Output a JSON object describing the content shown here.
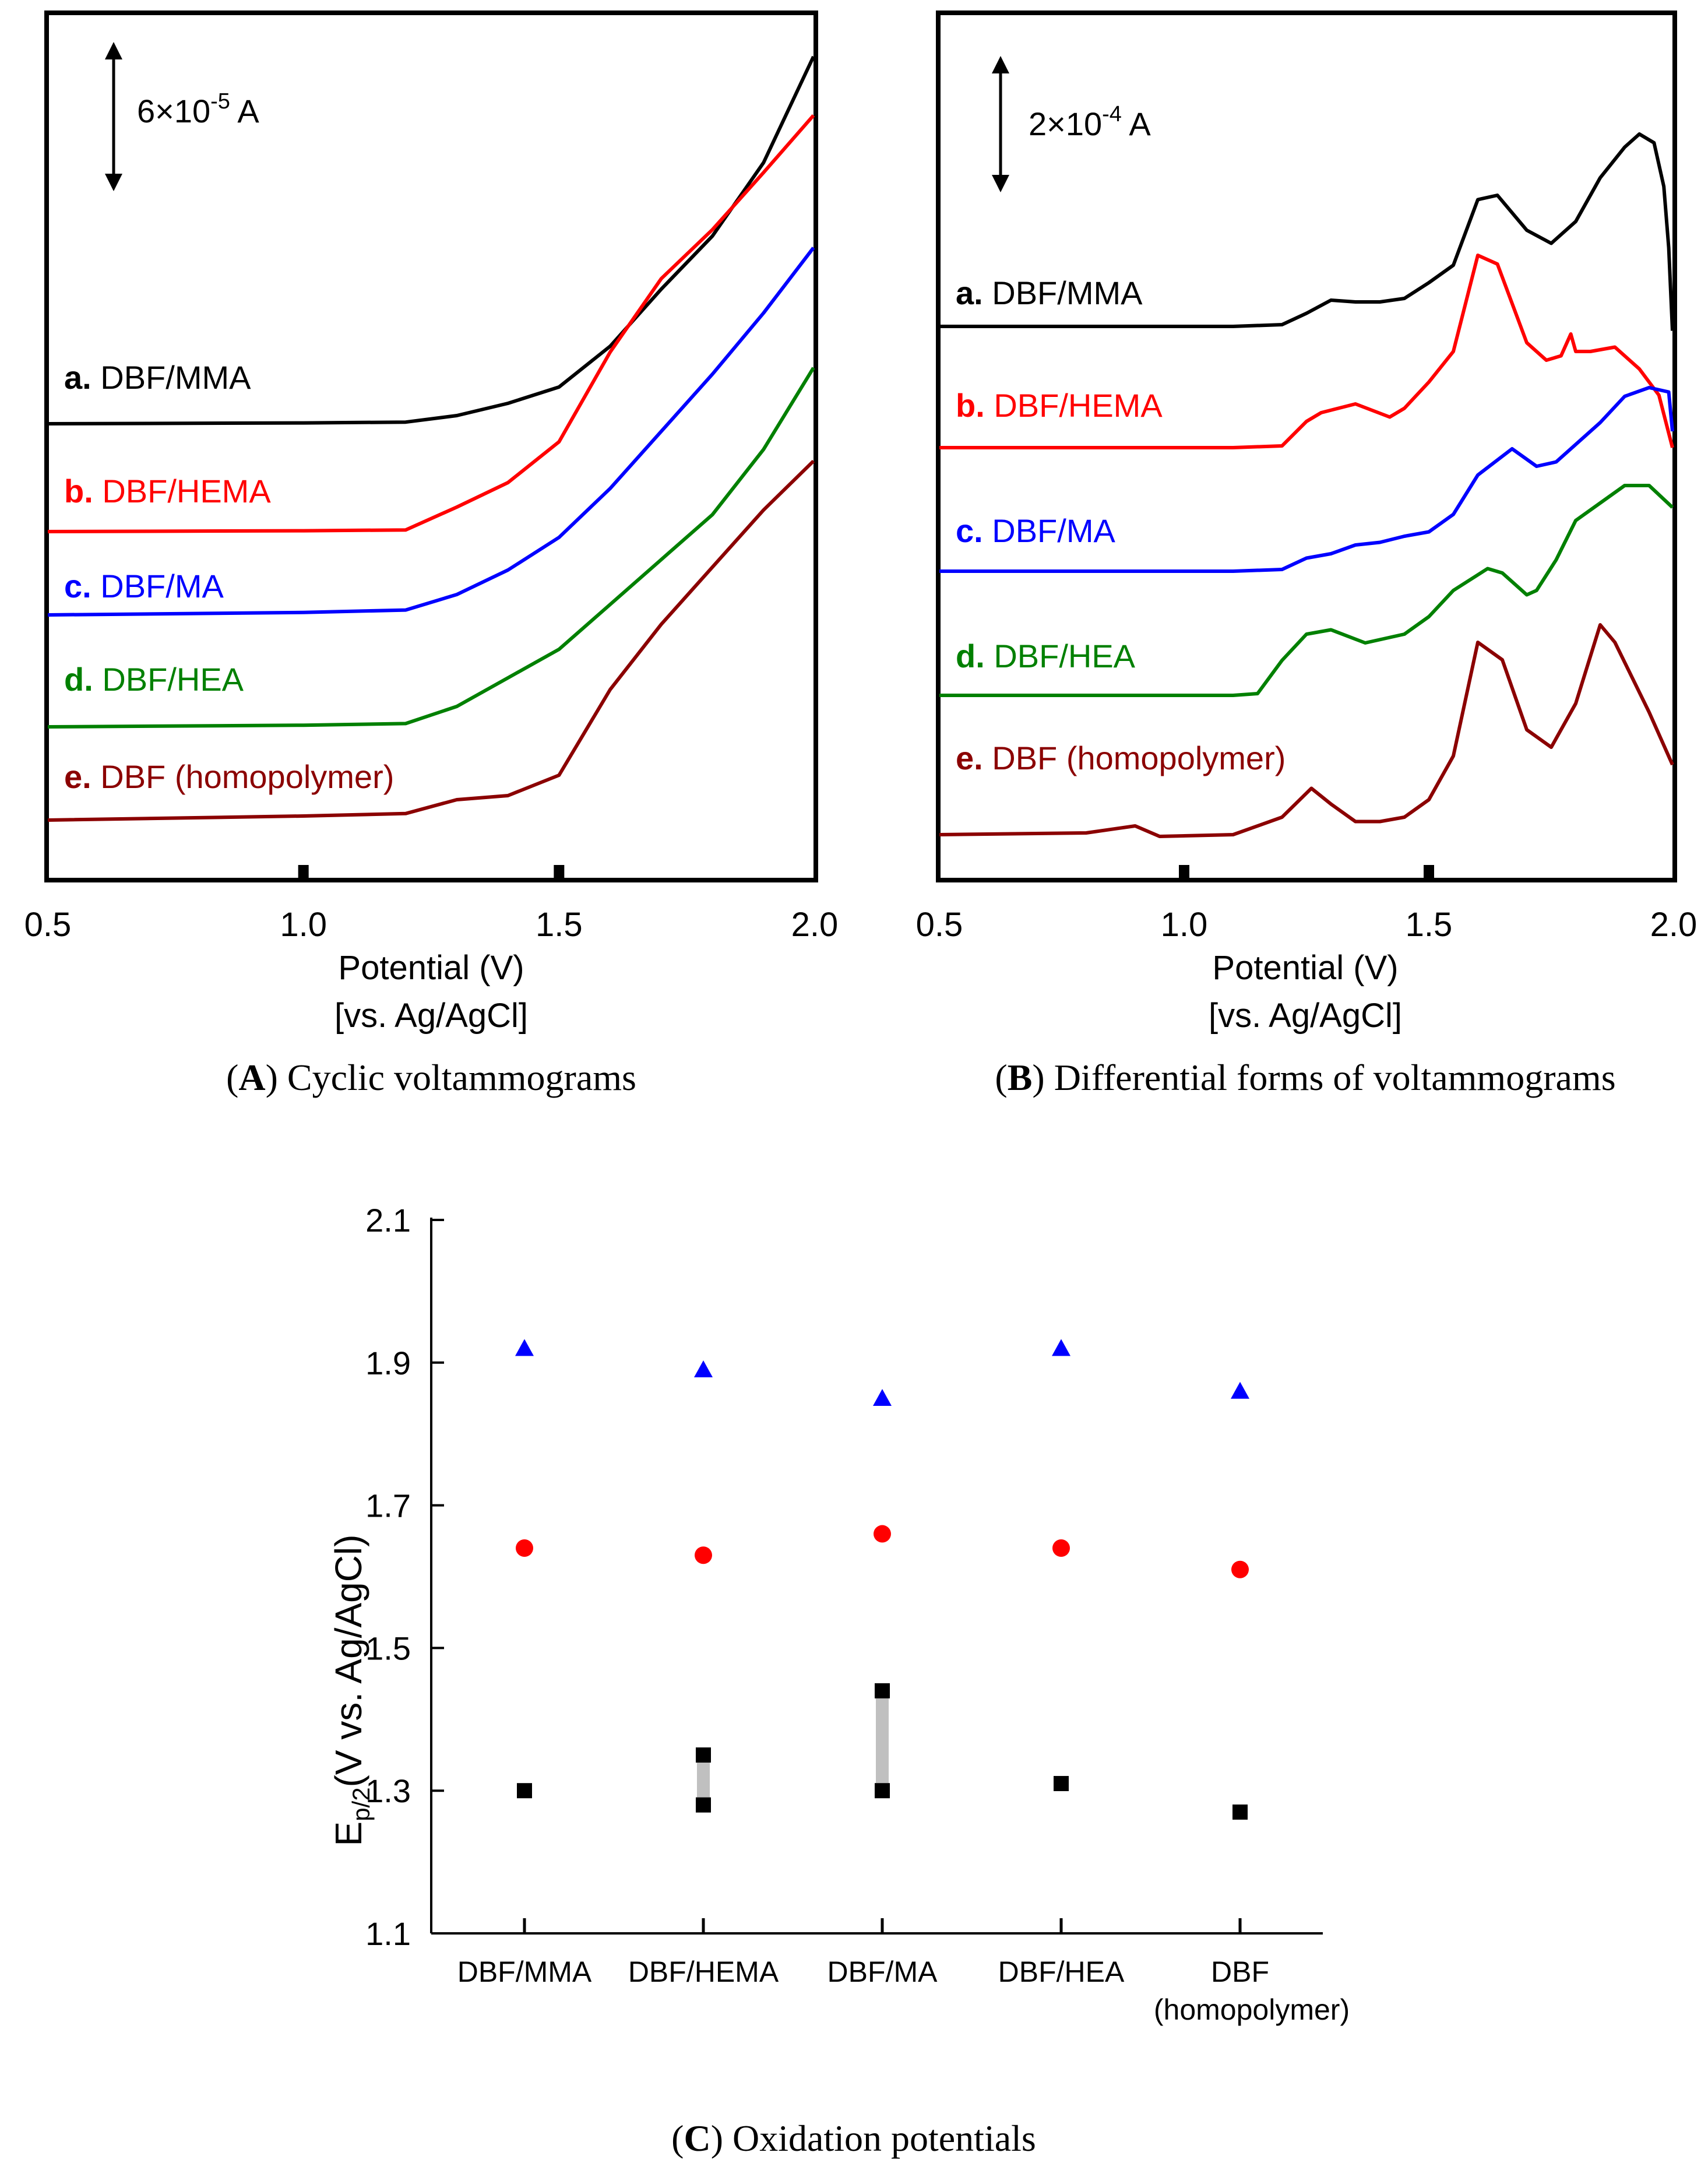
{
  "colors": {
    "a": "#000000",
    "b": "#ff0000",
    "c": "#0000ff",
    "d": "#008000",
    "e": "#8b0000",
    "errorbar": "#c0c0c0"
  },
  "series_meta": [
    {
      "id": "a",
      "tag": "a.",
      "label": "DBF/MMA",
      "label_color": "#000000"
    },
    {
      "id": "b",
      "tag": "b.",
      "label": "DBF/HEMA",
      "label_color": "#ff0000"
    },
    {
      "id": "c",
      "tag": "c.",
      "label": "DBF/MA",
      "label_color": "#0000ff"
    },
    {
      "id": "d",
      "tag": "d.",
      "label": "DBF/HEA",
      "label_color": "#008000"
    },
    {
      "id": "e",
      "tag": "e.",
      "label": "DBF (homopolymer)",
      "label_color": "#8b0000"
    }
  ],
  "panelA": {
    "caption_letter": "A",
    "caption_text": "Cyclic voltammograms",
    "scalebar_label": "6×10",
    "scalebar_exp": "-5",
    "scalebar_unit": "A",
    "xlabel_line1": "Potential (V)",
    "xlabel_line2": "[vs. Ag/AgCl]"
  },
  "panelB": {
    "caption_letter": "B",
    "caption_text": "Differential forms of voltammograms",
    "scalebar_label": "2×10",
    "scalebar_exp": "-4",
    "scalebar_unit": "A",
    "xlabel_line1": "Potential (V)",
    "xlabel_line2": "[vs. Ag/AgCl]"
  },
  "panelC": {
    "caption_letter": "C",
    "caption_text": "Oxidation potentials",
    "ylabel_main": "E",
    "ylabel_sub": "p/2",
    "ylabel_rest": "(V vs. Ag/AgCl)",
    "category_line2": [
      "",
      "",
      "",
      "",
      "(homopolymer)"
    ]
  },
  "chart_data": [
    {
      "type": "line",
      "title": "Cyclic voltammograms",
      "xlabel": "Potential (V) [vs. Ag/AgCl]",
      "ylabel": "",
      "xlim": [
        0.5,
        2.0
      ],
      "x_ticks": [
        "0.5",
        "1.0",
        "1.5",
        "2.0"
      ],
      "x_tick_values": [
        0.5,
        1.0,
        1.5,
        2.0
      ],
      "note": "current, curves vertically offset",
      "series": [
        {
          "name": "DBF/MMA",
          "x": [
            0.5,
            1.0,
            1.2,
            1.3,
            1.4,
            1.5,
            1.6,
            1.7,
            1.8,
            1.9,
            2.0
          ],
          "y": [
            0,
            0.01,
            0.02,
            0.1,
            0.25,
            0.45,
            0.95,
            1.65,
            2.3,
            3.2,
            4.5
          ]
        },
        {
          "name": "DBF/HEMA",
          "x": [
            0.5,
            1.0,
            1.2,
            1.3,
            1.4,
            1.5,
            1.6,
            1.7,
            1.8,
            1.9,
            2.0
          ],
          "y": [
            0,
            0.01,
            0.02,
            0.3,
            0.6,
            1.1,
            2.2,
            3.1,
            3.7,
            4.4,
            5.1
          ]
        },
        {
          "name": "DBF/MA",
          "x": [
            0.5,
            1.0,
            1.2,
            1.3,
            1.4,
            1.5,
            1.6,
            1.7,
            1.8,
            1.9,
            2.0
          ],
          "y": [
            0,
            0.03,
            0.06,
            0.25,
            0.55,
            0.95,
            1.55,
            2.25,
            2.95,
            3.7,
            4.5
          ]
        },
        {
          "name": "DBF/HEA",
          "x": [
            0.5,
            1.0,
            1.2,
            1.3,
            1.4,
            1.5,
            1.6,
            1.7,
            1.8,
            1.9,
            2.0
          ],
          "y": [
            0,
            0.02,
            0.04,
            0.25,
            0.6,
            0.95,
            1.5,
            2.05,
            2.6,
            3.4,
            4.4
          ]
        },
        {
          "name": "DBF (homopolymer)",
          "x": [
            0.5,
            1.0,
            1.2,
            1.3,
            1.4,
            1.5,
            1.6,
            1.7,
            1.8,
            1.9,
            2.0
          ],
          "y": [
            0,
            0.05,
            0.08,
            0.25,
            0.3,
            0.55,
            1.6,
            2.4,
            3.1,
            3.8,
            4.4
          ]
        }
      ]
    },
    {
      "type": "line",
      "title": "Differential forms of voltammograms",
      "xlabel": "Potential (V) [vs. Ag/AgCl]",
      "ylabel": "",
      "xlim": [
        0.5,
        2.0
      ],
      "x_ticks": [
        "0.5",
        "1.0",
        "1.5",
        "2.0"
      ],
      "x_tick_values": [
        0.5,
        1.0,
        1.5,
        2.0
      ],
      "note": "dI/dE, curves vertically offset",
      "series": [
        {
          "name": "DBF/MMA",
          "x": [
            0.5,
            1.0,
            1.1,
            1.2,
            1.25,
            1.3,
            1.35,
            1.4,
            1.45,
            1.5,
            1.55,
            1.6,
            1.64,
            1.7,
            1.75,
            1.8,
            1.85,
            1.9,
            1.93,
            1.96,
            1.98,
            1.99,
            2.0
          ],
          "y": [
            0,
            0,
            0,
            0.02,
            0.15,
            0.3,
            0.28,
            0.28,
            0.32,
            0.5,
            0.7,
            1.45,
            1.5,
            1.1,
            0.95,
            1.2,
            1.7,
            2.05,
            2.2,
            2.1,
            1.6,
            0.9,
            -0.05
          ]
        },
        {
          "name": "DBF/HEMA",
          "x": [
            0.5,
            1.0,
            1.1,
            1.2,
            1.25,
            1.28,
            1.35,
            1.42,
            1.45,
            1.5,
            1.55,
            1.6,
            1.64,
            1.7,
            1.74,
            1.77,
            1.79,
            1.8,
            1.83,
            1.88,
            1.93,
            1.97,
            2.0
          ],
          "y": [
            0,
            0,
            0,
            0.02,
            0.3,
            0.4,
            0.5,
            0.35,
            0.45,
            0.75,
            1.1,
            2.2,
            2.1,
            1.2,
            1.0,
            1.05,
            1.3,
            1.1,
            1.1,
            1.15,
            0.9,
            0.6,
            0.0
          ]
        },
        {
          "name": "DBF/MA",
          "x": [
            0.5,
            1.0,
            1.1,
            1.2,
            1.25,
            1.3,
            1.35,
            1.4,
            1.45,
            1.5,
            1.55,
            1.6,
            1.67,
            1.72,
            1.76,
            1.8,
            1.85,
            1.9,
            1.95,
            1.99,
            2.0
          ],
          "y": [
            0,
            0,
            0,
            0.02,
            0.15,
            0.2,
            0.3,
            0.33,
            0.4,
            0.45,
            0.65,
            1.1,
            1.4,
            1.2,
            1.25,
            1.45,
            1.7,
            2.0,
            2.1,
            2.05,
            1.6
          ]
        },
        {
          "name": "DBF/HEA",
          "x": [
            0.5,
            1.0,
            1.1,
            1.15,
            1.2,
            1.25,
            1.3,
            1.37,
            1.45,
            1.5,
            1.55,
            1.62,
            1.65,
            1.7,
            1.72,
            1.76,
            1.8,
            1.85,
            1.9,
            1.95,
            2.0
          ],
          "y": [
            0,
            0,
            0,
            0.02,
            0.4,
            0.7,
            0.75,
            0.6,
            0.7,
            0.9,
            1.2,
            1.45,
            1.4,
            1.15,
            1.2,
            1.55,
            2.0,
            2.2,
            2.4,
            2.4,
            2.15
          ]
        },
        {
          "name": "DBF (homopolymer)",
          "x": [
            0.5,
            0.8,
            0.9,
            0.95,
            1.1,
            1.2,
            1.26,
            1.3,
            1.35,
            1.4,
            1.45,
            1.5,
            1.55,
            1.6,
            1.65,
            1.7,
            1.75,
            1.8,
            1.85,
            1.88,
            1.95,
            2.0
          ],
          "y": [
            0,
            0.02,
            0.1,
            -0.02,
            0,
            0.2,
            0.53,
            0.35,
            0.15,
            0.15,
            0.2,
            0.4,
            0.9,
            2.2,
            2.0,
            1.2,
            1.0,
            1.5,
            2.4,
            2.2,
            1.4,
            0.8
          ]
        }
      ]
    },
    {
      "type": "scatter",
      "title": "Oxidation potentials",
      "xlabel": "",
      "ylabel": "Ep/2(V vs. Ag/AgCl)",
      "categories": [
        "DBF/MMA",
        "DBF/HEMA",
        "DBF/MA",
        "DBF/HEA",
        "DBF"
      ],
      "ylim": [
        1.1,
        2.1
      ],
      "y_ticks": [
        "1.1",
        "1.3",
        "1.5",
        "1.7",
        "1.9",
        "2.1"
      ],
      "y_tick_values": [
        1.1,
        1.3,
        1.5,
        1.7,
        1.9,
        2.1
      ],
      "series": [
        {
          "marker": "triangle",
          "color": "#0000ff",
          "values": [
            1.92,
            1.89,
            1.85,
            1.92,
            1.86
          ]
        },
        {
          "marker": "circle",
          "color": "#ff0000",
          "values": [
            1.64,
            1.63,
            1.66,
            1.64,
            1.61
          ]
        },
        {
          "marker": "square",
          "color": "#000000",
          "values": [
            1.3,
            1.28,
            1.3,
            1.31,
            1.27
          ]
        },
        {
          "marker": "square",
          "color": "#000000",
          "values": [
            null,
            1.35,
            1.44,
            null,
            null
          ]
        }
      ],
      "ranges": [
        {
          "category": "DBF/HEMA",
          "low": 1.28,
          "high": 1.35
        },
        {
          "category": "DBF/MA",
          "low": 1.3,
          "high": 1.44
        }
      ]
    }
  ]
}
